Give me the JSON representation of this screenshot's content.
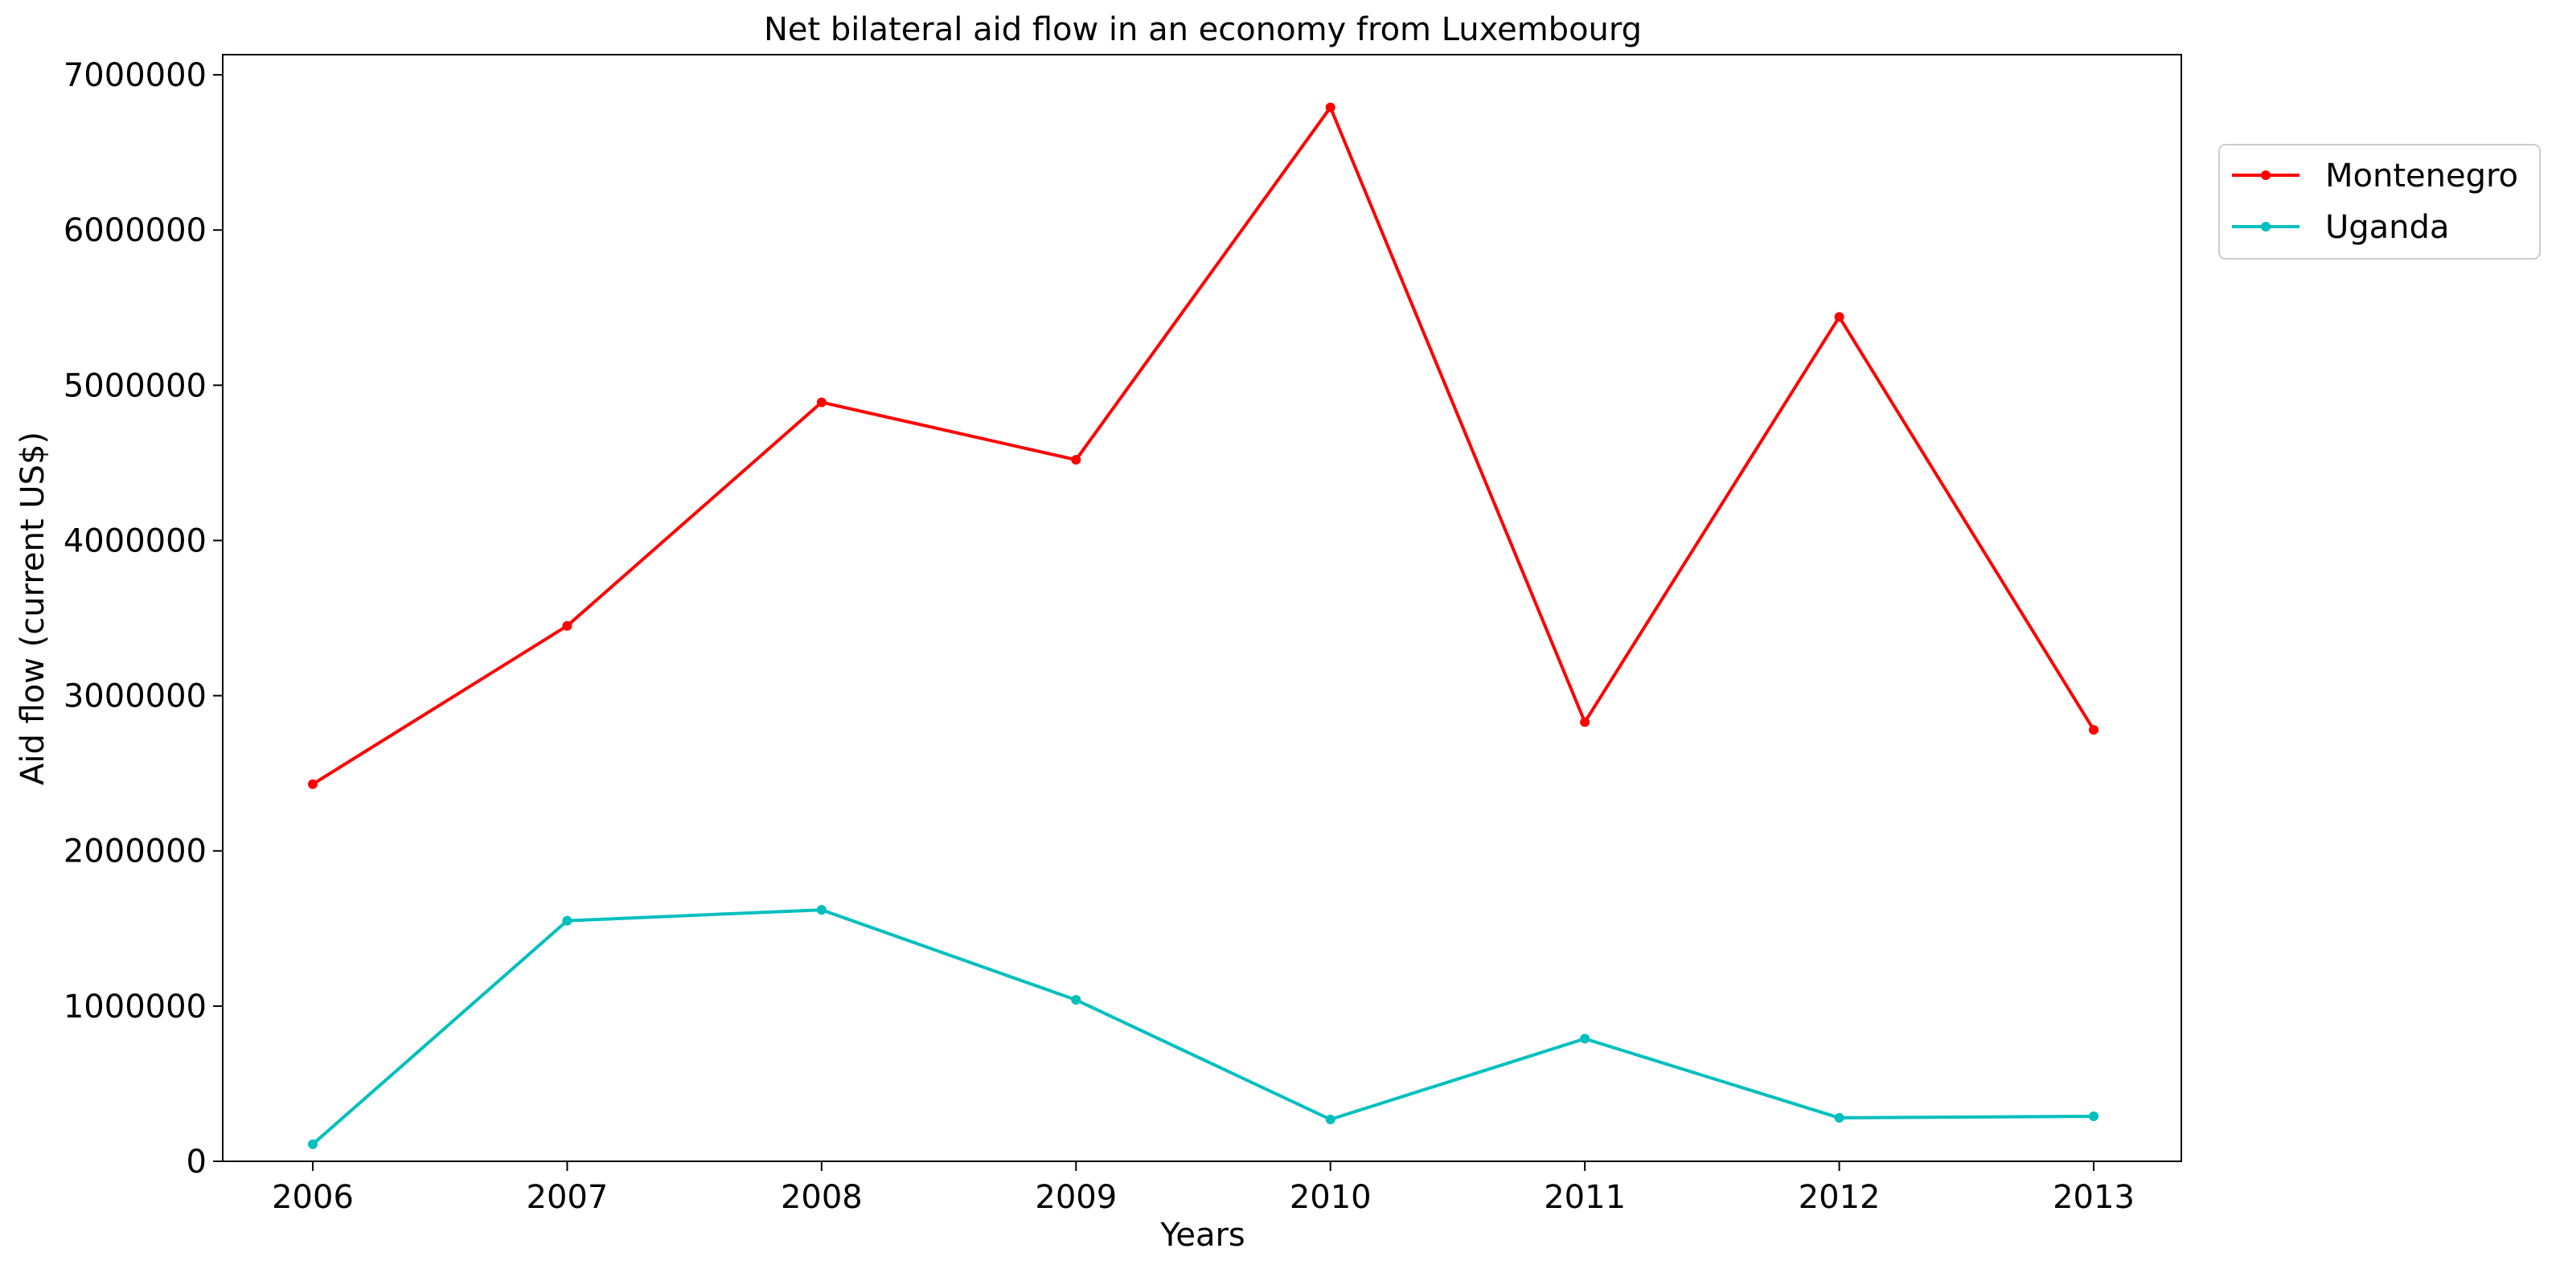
{
  "chart_data": {
    "type": "line",
    "title": "Net bilateral aid flow in an economy from Luxembourg",
    "xlabel": "Years",
    "ylabel": "Aid flow (current US$)",
    "x": [
      "2006",
      "2007",
      "2008",
      "2009",
      "2010",
      "2011",
      "2012",
      "2013"
    ],
    "ylim": [
      0,
      7130000
    ],
    "y_ticks": [
      "0",
      "1000000",
      "2000000",
      "3000000",
      "4000000",
      "5000000",
      "6000000",
      "7000000"
    ],
    "grid": false,
    "legend_position": "upper-right-outside",
    "series": [
      {
        "name": "Montenegro",
        "color": "#ff0000",
        "values": [
          2430000,
          3450000,
          4890000,
          4520000,
          6790000,
          2830000,
          5440000,
          2780000
        ]
      },
      {
        "name": "Uganda",
        "color": "#00bfbf",
        "values": [
          110000,
          1550000,
          1620000,
          1040000,
          270000,
          790000,
          280000,
          290000
        ]
      }
    ]
  }
}
